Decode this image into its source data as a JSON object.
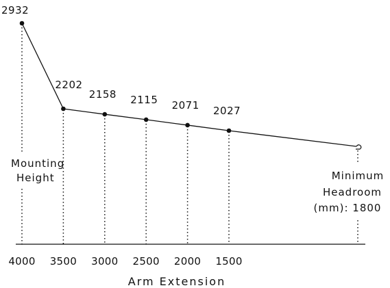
{
  "chart_data": {
    "type": "line",
    "x_axis_label": "Arm Extension",
    "x_ticks": [
      "4000",
      "3500",
      "3000",
      "2500",
      "2000",
      "1500"
    ],
    "points": [
      {
        "arm_extension": 4000,
        "headroom": 2932,
        "label": "2932"
      },
      {
        "arm_extension": 3500,
        "headroom": 2202,
        "label": "2202"
      },
      {
        "arm_extension": 3000,
        "headroom": 2158,
        "label": "2158"
      },
      {
        "arm_extension": 2500,
        "headroom": 2115,
        "label": "2115"
      },
      {
        "arm_extension": 2000,
        "headroom": 2071,
        "label": "2071"
      },
      {
        "arm_extension": 1500,
        "headroom": 2027,
        "label": "2027"
      }
    ],
    "minimum_headroom": 1800,
    "annotations": {
      "mounting_height": [
        "Mounting",
        "Height"
      ],
      "minimum_headroom": [
        "Minimum",
        "Headroom",
        "(mm): 1800"
      ]
    },
    "colors": {
      "ink": "#111111",
      "background": "#ffffff"
    }
  }
}
